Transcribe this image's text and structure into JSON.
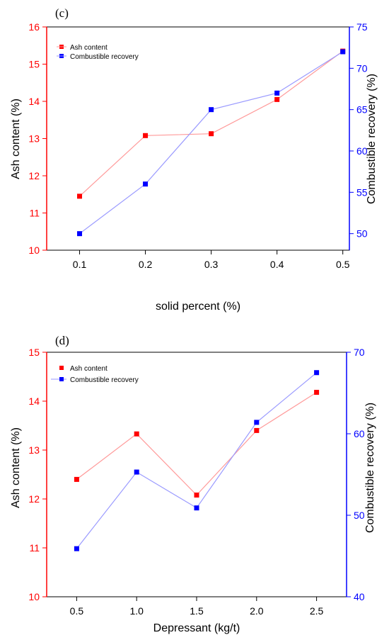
{
  "chart_data": [
    {
      "panel_label": "(c)",
      "type": "line",
      "xlabel": "solid percent (%)",
      "ylabel_left": "Ash content (%)",
      "ylabel_right": "Combustible recovery (%)",
      "x": [
        0.1,
        0.2,
        0.3,
        0.4,
        0.5
      ],
      "x_tick_labels": [
        "0.1",
        "0.2",
        "0.3",
        "0.4",
        "0.5"
      ],
      "xlim": [
        0.05,
        0.51
      ],
      "ylim_left": [
        10,
        16
      ],
      "ylim_right": [
        48,
        75
      ],
      "y_left_ticks": [
        "10",
        "11",
        "12",
        "13",
        "14",
        "15",
        "16"
      ],
      "y_right_ticks": [
        "50",
        "55",
        "60",
        "65",
        "70",
        "75"
      ],
      "series": [
        {
          "name": "Ash content",
          "axis": "left",
          "color": "#ff0000",
          "line_color": "#ff9a9a",
          "values": [
            11.45,
            13.08,
            13.13,
            14.05,
            15.35
          ]
        },
        {
          "name": "Combustible recovery",
          "axis": "right",
          "color": "#0000ff",
          "line_color": "#9a9aff",
          "values": [
            50.0,
            56.0,
            65.0,
            67.0,
            72.0
          ]
        }
      ],
      "left_axis_color": "#ff0000",
      "right_axis_color": "#0000ff",
      "legend_position": "top-left",
      "grid": false
    },
    {
      "panel_label": "(d)",
      "type": "line",
      "xlabel": "Depressant (kg/t)",
      "ylabel_left": "Ash content (%)",
      "ylabel_right": "Combustible recovery (%)",
      "x": [
        0.5,
        1.0,
        1.5,
        2.0,
        2.5
      ],
      "x_tick_labels": [
        "0.5",
        "1.0",
        "1.5",
        "2.0",
        "2.5"
      ],
      "xlim": [
        0.25,
        2.75
      ],
      "ylim_left": [
        10,
        15
      ],
      "ylim_right": [
        40,
        70
      ],
      "y_left_ticks": [
        "10",
        "11",
        "12",
        "13",
        "14",
        "15"
      ],
      "y_right_ticks": [
        "40",
        "50",
        "60",
        "70"
      ],
      "series": [
        {
          "name": "Ash content",
          "axis": "left",
          "color": "#ff0000",
          "line_color": "#ff9a9a",
          "values": [
            12.4,
            13.33,
            12.08,
            13.4,
            14.18
          ]
        },
        {
          "name": "Combustible recovery",
          "axis": "right",
          "color": "#0000ff",
          "line_color": "#9a9aff",
          "values": [
            45.9,
            55.3,
            50.9,
            61.4,
            67.5
          ]
        }
      ],
      "left_axis_color": "#ff0000",
      "right_axis_color": "#0000ff",
      "legend_position": "top-left",
      "grid": false
    }
  ]
}
